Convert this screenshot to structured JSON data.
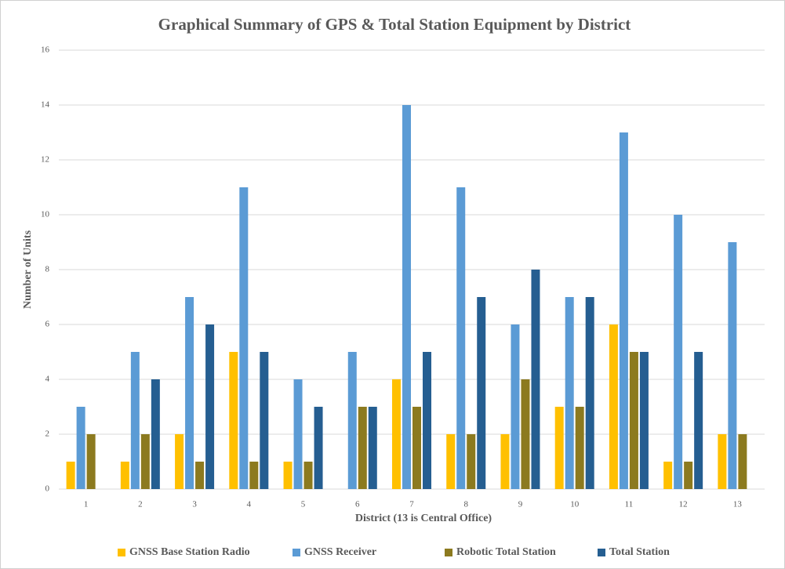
{
  "chart_data": {
    "type": "bar",
    "title": "Graphical Summary of GPS & Total Station Equipment by District",
    "x_label": "District (13 is Central Office)",
    "y_label": "Number of Units",
    "categories": [
      "1",
      "2",
      "3",
      "4",
      "5",
      "6",
      "7",
      "8",
      "9",
      "10",
      "11",
      "12",
      "13"
    ],
    "series": [
      {
        "name": "GNSS Base Station Radio",
        "color": "#ffc000",
        "values": [
          1,
          1,
          2,
          5,
          1,
          0,
          4,
          2,
          2,
          3,
          6,
          1,
          2
        ]
      },
      {
        "name": "GNSS Receiver",
        "color": "#5b9bd5",
        "values": [
          3,
          5,
          7,
          11,
          4,
          5,
          14,
          11,
          6,
          7,
          13,
          10,
          9
        ]
      },
      {
        "name": "Robotic Total Station",
        "color": "#8c7a1f",
        "values": [
          2,
          2,
          1,
          1,
          1,
          3,
          3,
          2,
          4,
          3,
          5,
          1,
          2
        ]
      },
      {
        "name": "Total Station",
        "color": "#255e91",
        "values": [
          0,
          4,
          6,
          5,
          3,
          3,
          5,
          7,
          8,
          7,
          5,
          5,
          0
        ]
      }
    ],
    "ylim": [
      0,
      16
    ],
    "yticks": [
      0,
      2,
      4,
      6,
      8,
      10,
      12,
      14,
      16
    ],
    "grid": true,
    "legend": "bottom"
  }
}
